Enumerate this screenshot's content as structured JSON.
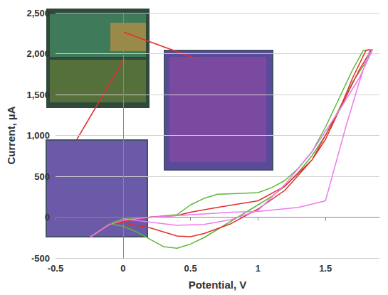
{
  "chart_data": {
    "type": "line",
    "x_label": "Potential, V",
    "y_label": "Current, µA",
    "xlim": [
      -0.5,
      1.9
    ],
    "xticks": [
      -0.5,
      0,
      0.5,
      1,
      1.5
    ],
    "ylim": [
      -500,
      2500
    ],
    "yticks": [
      -500,
      0,
      500,
      {
        "value": 1000,
        "label": "1,000"
      },
      {
        "value": 1500,
        "label": "1,500"
      },
      {
        "value": 2000,
        "label": "2,000"
      },
      {
        "value": 2500,
        "label": "2,500"
      }
    ],
    "grid": true,
    "series": [
      {
        "color": "#5cb83a",
        "x": [
          -0.25,
          -0.1,
          0,
          0.2,
          0.4,
          0.5,
          0.6,
          0.7,
          0.85,
          1.0,
          1.1,
          1.2,
          1.3,
          1.4,
          1.5,
          1.6,
          1.7,
          1.78,
          1.84,
          1.8,
          1.7,
          1.6,
          1.5,
          1.4,
          1.3,
          1.2,
          1.1,
          1.0,
          0.9,
          0.8,
          0.7,
          0.6,
          0.5,
          0.4,
          0.3,
          0.2,
          0.1,
          0.0,
          -0.1
        ],
        "values": [
          -250,
          -80,
          -20,
          0,
          30,
          150,
          230,
          280,
          290,
          300,
          360,
          450,
          600,
          800,
          1100,
          1450,
          1800,
          2040,
          2050,
          1900,
          1650,
          1320,
          1000,
          750,
          550,
          380,
          250,
          150,
          50,
          -50,
          -150,
          -250,
          -330,
          -380,
          -360,
          -270,
          -180,
          -110,
          -80
        ]
      },
      {
        "color": "#e0302c",
        "x": [
          -0.25,
          -0.1,
          0,
          0.2,
          0.4,
          0.5,
          0.7,
          1.0,
          1.2,
          1.4,
          1.5,
          1.6,
          1.7,
          1.8,
          1.84,
          1.75,
          1.6,
          1.4,
          1.2,
          1.0,
          0.8,
          0.6,
          0.5,
          0.4,
          0.2,
          0.0,
          -0.1
        ],
        "values": [
          -250,
          -90,
          -50,
          0,
          20,
          60,
          120,
          200,
          380,
          700,
          950,
          1300,
          1700,
          2040,
          2050,
          1800,
          1300,
          700,
          330,
          100,
          -80,
          -200,
          -240,
          -230,
          -130,
          -70,
          -80
        ]
      },
      {
        "color": "#ee7aee",
        "x": [
          -0.25,
          -0.1,
          0,
          0.2,
          0.4,
          0.6,
          0.8,
          1.0,
          1.3,
          1.5,
          1.55,
          1.65,
          1.75,
          1.83,
          1.85,
          1.75,
          1.6,
          1.4,
          1.2,
          1.0,
          0.8,
          0.6,
          0.4,
          0.2,
          0.0
        ],
        "values": [
          -250,
          -90,
          -40,
          0,
          20,
          40,
          60,
          70,
          120,
          200,
          500,
          1100,
          1650,
          2050,
          2050,
          1700,
          1300,
          800,
          400,
          80,
          -30,
          -90,
          -100,
          -60,
          -20
        ]
      }
    ]
  }
}
